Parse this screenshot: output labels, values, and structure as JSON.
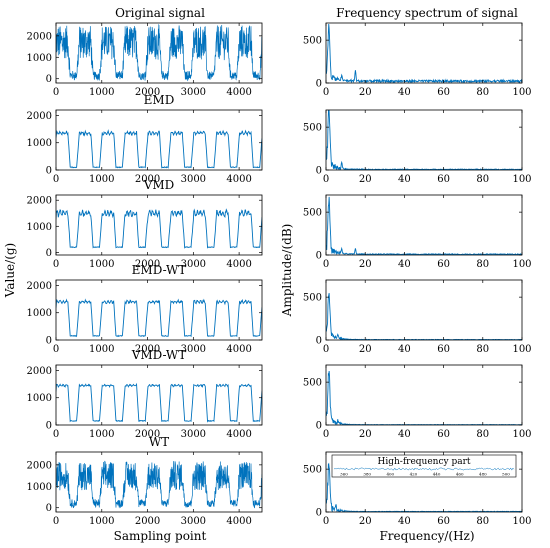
{
  "colors": {
    "line": "#0072BD",
    "axis": "#000000",
    "background": "#ffffff"
  },
  "figure": {
    "left_column_title": "Original signal",
    "right_column_title": "Frequency spectrum of signal",
    "left_ylabel": "Value/(g)",
    "right_ylabel": "Amplitude/(dB)",
    "left_xlabel": "Sampling point",
    "right_xlabel": "Frequency/(Hz)"
  },
  "chart_data": [
    {
      "id": "L0",
      "type": "line",
      "title": "Original signal",
      "signal": "original",
      "xlim": [
        0,
        4500
      ],
      "ylim": [
        -200,
        2600
      ],
      "xticks": [
        0,
        1000,
        2000,
        3000,
        4000
      ],
      "yticks": [
        0,
        1000,
        2000
      ],
      "cycles": 9,
      "base": 150,
      "plateau": 1700,
      "noise": 650
    },
    {
      "id": "L1",
      "type": "line",
      "title": "EMD",
      "signal": "smooth",
      "xlim": [
        0,
        4500
      ],
      "ylim": [
        0,
        2200
      ],
      "xticks": [
        0,
        1000,
        2000,
        3000,
        4000
      ],
      "yticks": [
        0,
        1000,
        2000
      ],
      "cycles": 9,
      "base": 100,
      "plateau": 1350,
      "noise": 120
    },
    {
      "id": "L2",
      "type": "line",
      "title": "VMD",
      "signal": "smooth",
      "xlim": [
        0,
        4500
      ],
      "ylim": [
        -100,
        2200
      ],
      "xticks": [
        0,
        1000,
        2000,
        3000,
        4000
      ],
      "yticks": [
        0,
        1000,
        2000
      ],
      "cycles": 9,
      "base": 200,
      "plateau": 1500,
      "noise": 220
    },
    {
      "id": "L3",
      "type": "line",
      "title": "EMD-WT",
      "signal": "smooth",
      "xlim": [
        0,
        4500
      ],
      "ylim": [
        0,
        2200
      ],
      "xticks": [
        0,
        1000,
        2000,
        3000,
        4000
      ],
      "yticks": [
        0,
        1000,
        2000
      ],
      "cycles": 9,
      "base": 150,
      "plateau": 1400,
      "noise": 100
    },
    {
      "id": "L4",
      "type": "line",
      "title": "VMD-WT",
      "signal": "smooth",
      "xlim": [
        0,
        4500
      ],
      "ylim": [
        0,
        2200
      ],
      "xticks": [
        0,
        1000,
        2000,
        3000,
        4000
      ],
      "yticks": [
        0,
        1000,
        2000
      ],
      "cycles": 9,
      "base": 150,
      "plateau": 1450,
      "noise": 60
    },
    {
      "id": "L5",
      "type": "line",
      "title": "WT",
      "signal": "original",
      "xlim": [
        0,
        4500
      ],
      "ylim": [
        -200,
        2600
      ],
      "xticks": [
        0,
        1000,
        2000,
        3000,
        4000
      ],
      "yticks": [
        0,
        1000,
        2000
      ],
      "cycles": 9,
      "base": 200,
      "plateau": 1500,
      "noise": 550
    },
    {
      "id": "R0",
      "type": "line",
      "signal": "spectrum",
      "xlim": [
        0,
        100
      ],
      "ylim": [
        0,
        700
      ],
      "xticks": [
        0,
        20,
        40,
        60,
        80,
        100
      ],
      "yticks": [
        0,
        500
      ],
      "peak": 560,
      "spikes": [
        [
          15,
          130
        ],
        [
          8,
          60
        ]
      ],
      "floor": 25
    },
    {
      "id": "R1",
      "type": "line",
      "signal": "spectrum",
      "xlim": [
        0,
        100
      ],
      "ylim": [
        0,
        700
      ],
      "xticks": [
        0,
        20,
        40,
        60,
        80,
        100
      ],
      "yticks": [
        0,
        500
      ],
      "peak": 620,
      "spikes": [
        [
          8,
          80
        ]
      ],
      "floor": 8
    },
    {
      "id": "R2",
      "type": "line",
      "signal": "spectrum",
      "xlim": [
        0,
        100
      ],
      "ylim": [
        0,
        700
      ],
      "xticks": [
        0,
        20,
        40,
        60,
        80,
        100
      ],
      "yticks": [
        0,
        500
      ],
      "peak": 560,
      "spikes": [
        [
          8,
          60
        ],
        [
          15,
          70
        ]
      ],
      "floor": 10
    },
    {
      "id": "R3",
      "type": "line",
      "signal": "spectrum",
      "xlim": [
        0,
        100
      ],
      "ylim": [
        0,
        700
      ],
      "xticks": [
        0,
        20,
        40,
        60,
        80,
        100
      ],
      "yticks": [
        0,
        500
      ],
      "peak": 520,
      "spikes": [
        [
          6,
          50
        ]
      ],
      "floor": 5
    },
    {
      "id": "R4",
      "type": "line",
      "signal": "spectrum",
      "xlim": [
        0,
        100
      ],
      "ylim": [
        0,
        700
      ],
      "xticks": [
        0,
        20,
        40,
        60,
        80,
        100
      ],
      "yticks": [
        0,
        500
      ],
      "peak": 560,
      "spikes": [
        [
          6,
          40
        ]
      ],
      "floor": 4
    },
    {
      "id": "R5",
      "type": "line",
      "signal": "spectrum",
      "xlim": [
        0,
        100
      ],
      "ylim": [
        0,
        700
      ],
      "xticks": [
        0,
        20,
        40,
        60,
        80,
        100
      ],
      "yticks": [
        0,
        500
      ],
      "peak": 520,
      "spikes": [
        [
          5,
          50
        ]
      ],
      "floor": 6,
      "inset": {
        "title": "High-frequency part",
        "xticks": [
          "360",
          "380",
          "400",
          "420",
          "440",
          "460",
          "480",
          "500"
        ]
      }
    }
  ]
}
